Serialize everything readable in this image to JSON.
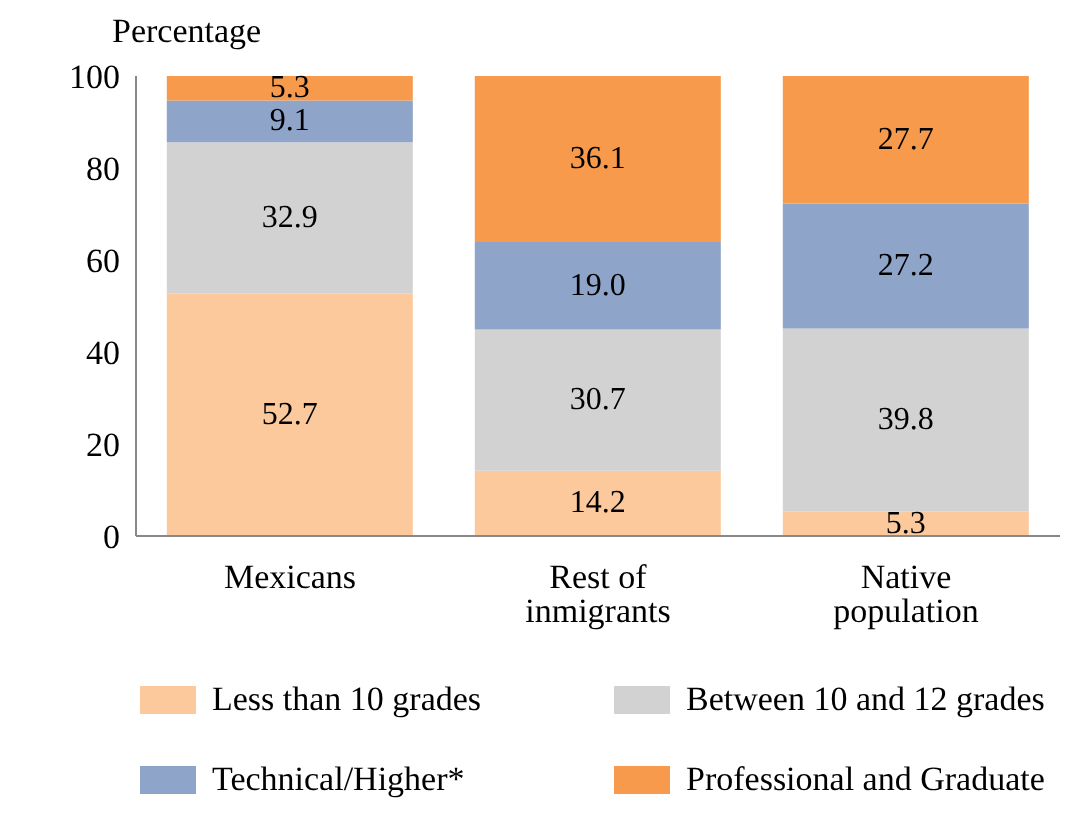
{
  "chart_data": {
    "type": "bar",
    "stacked": true,
    "ylabel": "Percentage",
    "categories": [
      "Mexicans",
      "Rest of inmigrants",
      "Native population"
    ],
    "ylim": [
      0,
      100
    ],
    "yticks": [
      0,
      20,
      40,
      60,
      80,
      100
    ],
    "grid": false,
    "legend": "bottom",
    "series": [
      {
        "name": "Less than 10 grades",
        "color": "#fbc99c",
        "values": [
          52.7,
          14.2,
          5.3
        ],
        "value_labels": [
          "52.7",
          "14.2",
          "5.3"
        ]
      },
      {
        "name": "Between 10 and 12 grades",
        "color": "#d2d2d2",
        "values": [
          32.9,
          30.7,
          39.8
        ],
        "value_labels": [
          "32.9",
          "30.7",
          "39.8"
        ]
      },
      {
        "name": "Technical/Higher*",
        "color": "#8ea4c9",
        "values": [
          9.1,
          19.0,
          27.2
        ],
        "value_labels": [
          "9.1",
          "19.0",
          "27.2"
        ]
      },
      {
        "name": "Professional and Graduate",
        "color": "#f79a4b",
        "values": [
          5.3,
          36.1,
          27.7
        ],
        "value_labels": [
          "5.3",
          "36.1",
          "27.7"
        ]
      }
    ]
  }
}
